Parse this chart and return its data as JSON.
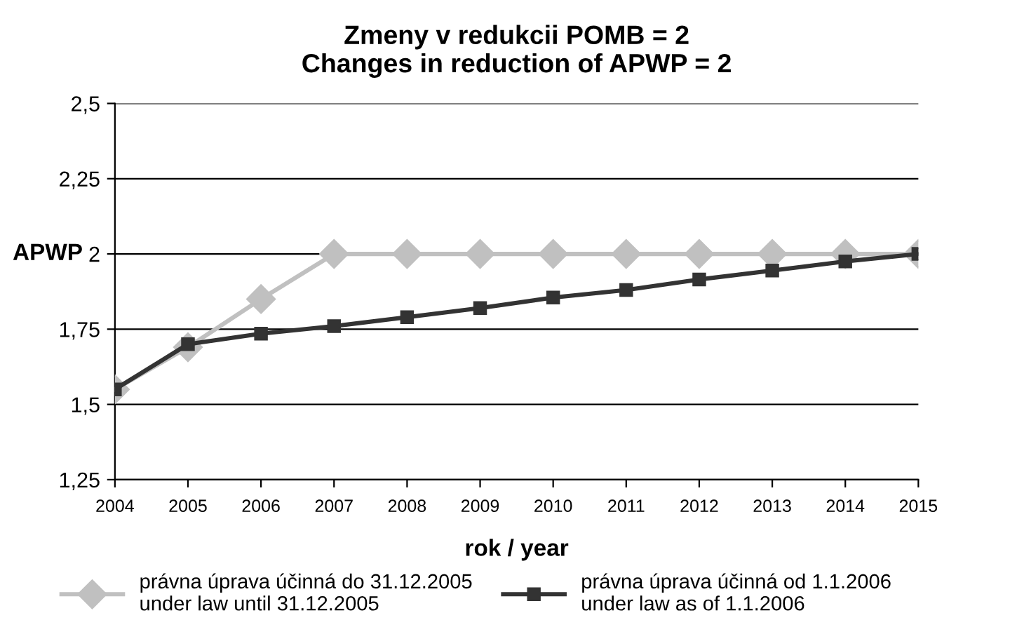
{
  "chart_data": {
    "type": "line",
    "title": "Zmeny v redukcii POMB = 2\nChanges in reduction of APWP = 2",
    "xlabel": "rok / year",
    "ylabel": "APWP",
    "categories": [
      "2004",
      "2005",
      "2006",
      "2007",
      "2008",
      "2009",
      "2010",
      "2011",
      "2012",
      "2013",
      "2014",
      "2015"
    ],
    "series": [
      {
        "name": "právna úprava účinná do 31.12.2005\nunder law until 31.12.2005",
        "color": "#c0c0c0",
        "marker": "diamond",
        "values": [
          1.55,
          1.69,
          1.85,
          2,
          2,
          2,
          2,
          2,
          2,
          2,
          2,
          2
        ]
      },
      {
        "name": "právna úprava účinná od 1.1.2006\nunder law as of 1.1.2006",
        "color": "#333333",
        "marker": "square",
        "values": [
          1.55,
          1.7,
          1.735,
          1.76,
          1.79,
          1.82,
          1.855,
          1.88,
          1.915,
          1.945,
          1.975,
          2
        ]
      }
    ],
    "ylim": [
      1.25,
      2.5
    ],
    "yticks": [
      {
        "value": 1.25,
        "label": "1,25"
      },
      {
        "value": 1.5,
        "label": "1,5"
      },
      {
        "value": 1.75,
        "label": "1,75"
      },
      2,
      {
        "value": 2.25,
        "label": "2,25"
      },
      {
        "value": 2.5,
        "label": "2,5"
      }
    ],
    "grid": "y",
    "legend": "bottom"
  }
}
